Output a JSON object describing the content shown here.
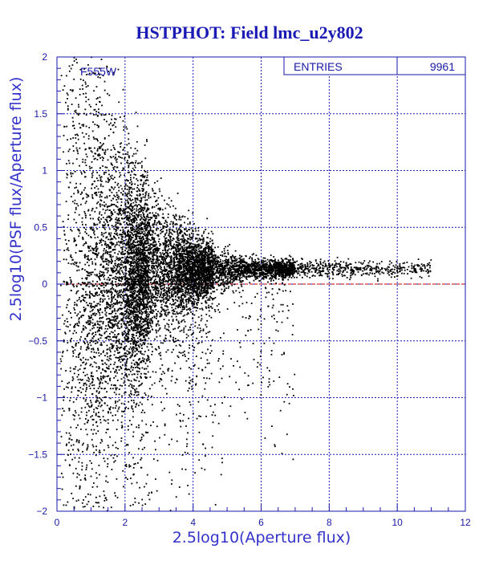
{
  "chart_data": {
    "type": "scatter",
    "title": "HSTPHOT: Field lmc_u2y802",
    "xlabel": "2.5log10(Aperture flux)",
    "ylabel": "2.5log10(PSF flux/Aperture flux)",
    "filter_label": "F555W",
    "stats": {
      "label": "ENTRIES",
      "value": "9961"
    },
    "xlim": [
      0,
      12
    ],
    "ylim": [
      -2,
      2
    ],
    "x_ticks": [
      0,
      2,
      4,
      6,
      8,
      10,
      12
    ],
    "x_tick_labels": [
      "0",
      "2",
      "4",
      "6",
      "8",
      "10",
      "12"
    ],
    "y_ticks": [
      -2,
      -1.5,
      -1,
      -0.5,
      0,
      0.5,
      1,
      1.5,
      2
    ],
    "y_tick_labels": [
      "−2",
      "−1.5",
      "−1",
      "−0.5",
      "0",
      "0.5",
      "1",
      "1.5",
      "2"
    ],
    "grid": true,
    "reference_line": {
      "y": 0,
      "style": "dashed"
    },
    "colors": {
      "axes": "#1a1aa8",
      "grid": "#1a1aa8",
      "title": "#1a1ab4",
      "points": "#000000",
      "reference_line": "#cc0000"
    },
    "distribution": {
      "entries": 9961,
      "locus_y": 0.13,
      "locus_x_range": [
        3.5,
        11
      ],
      "faint_spread_x_range": [
        0.05,
        3
      ]
    }
  }
}
